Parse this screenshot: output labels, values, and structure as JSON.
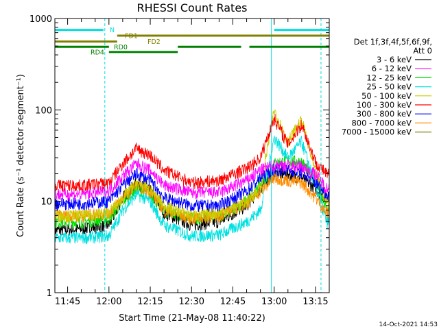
{
  "chart_data": {
    "type": "line",
    "title": "RHESSI Count Rates",
    "xlabel": "Start Time (21-May-08 11:40:22)",
    "ylabel": "Count Rate (s⁻¹ detector segment⁻¹)",
    "y_scale": "log",
    "ylim": [
      1,
      1000
    ],
    "xlim": [
      "11:40:22",
      "13:20:00"
    ],
    "y_ticks": [
      1,
      10,
      100,
      1000
    ],
    "y_tick_labels": [
      "1",
      "10",
      "100",
      "1000"
    ],
    "x_ticks": [
      "11:45",
      "12:00",
      "12:15",
      "12:30",
      "12:45",
      "13:00",
      "13:15"
    ],
    "timestamp": "14-Oct-2021 14:53",
    "legend": {
      "position": "right",
      "header": [
        "Det 1f,3f,4f,5f,6f,9f,",
        "Att 0"
      ]
    },
    "series": [
      {
        "name": "3 - 6 keV",
        "color": "#000000",
        "x": [
          "11:40",
          "11:50",
          "12:00",
          "12:05",
          "12:10",
          "12:15",
          "12:20",
          "12:30",
          "12:40",
          "12:50",
          "12:55",
          "13:00",
          "13:05",
          "13:10",
          "13:15",
          "13:19"
        ],
        "values": [
          4.8,
          5.0,
          5.5,
          11,
          16,
          13,
          7.5,
          5.5,
          6.0,
          9,
          14,
          20,
          20,
          18,
          14,
          10.5
        ]
      },
      {
        "name": "6 - 12 keV",
        "color": "#ff00ff",
        "x": [
          "11:40",
          "11:50",
          "12:00",
          "12:05",
          "12:10",
          "12:15",
          "12:20",
          "12:30",
          "12:40",
          "12:50",
          "12:55",
          "13:00",
          "13:05",
          "13:10",
          "13:15",
          "13:19"
        ],
        "values": [
          12,
          12,
          13,
          19,
          26,
          22,
          15,
          12.5,
          12.5,
          17,
          22,
          25,
          25,
          24,
          20,
          14
        ]
      },
      {
        "name": "12 - 25 keV",
        "color": "#00dd00",
        "x": [
          "11:40",
          "11:50",
          "12:00",
          "12:05",
          "12:10",
          "12:15",
          "12:20",
          "12:30",
          "12:40",
          "12:50",
          "12:55",
          "13:00",
          "13:05",
          "13:10",
          "13:15",
          "13:19"
        ],
        "values": [
          6.0,
          6.0,
          6.5,
          10,
          14,
          12,
          8,
          6.5,
          7,
          10,
          15,
          26,
          28,
          27,
          17,
          8
        ]
      },
      {
        "name": "25 - 50 keV",
        "color": "#00e0e0",
        "x": [
          "11:40",
          "11:50",
          "12:00",
          "12:05",
          "12:10",
          "12:15",
          "12:20",
          "12:30",
          "12:40",
          "12:50",
          "12:55",
          "13:00",
          "13:05",
          "13:10",
          "13:15",
          "13:19"
        ],
        "values": [
          4.0,
          4.0,
          4.2,
          8,
          12,
          10,
          5.5,
          4.2,
          4.3,
          6,
          8,
          50,
          30,
          45,
          15,
          6
        ]
      },
      {
        "name": "50 - 100 keV",
        "color": "#cccc00",
        "x": [
          "11:40",
          "11:50",
          "12:00",
          "12:05",
          "12:10",
          "12:15",
          "12:20",
          "12:30",
          "12:40",
          "12:50",
          "12:55",
          "13:00",
          "13:05",
          "13:10",
          "13:15",
          "13:19"
        ],
        "values": [
          7,
          7,
          7.5,
          11,
          16,
          14,
          9,
          7,
          7.5,
          10,
          14,
          100,
          45,
          78,
          20,
          10
        ]
      },
      {
        "name": "100 - 300 keV",
        "color": "#ff0000",
        "x": [
          "11:40",
          "11:50",
          "12:00",
          "12:05",
          "12:10",
          "12:15",
          "12:20",
          "12:30",
          "12:40",
          "12:50",
          "12:55",
          "13:00",
          "13:05",
          "13:10",
          "13:15",
          "13:19"
        ],
        "values": [
          15,
          15,
          16,
          26,
          38,
          32,
          22,
          16,
          17,
          23,
          30,
          82,
          42,
          70,
          27,
          20
        ]
      },
      {
        "name": "300 - 800 keV",
        "color": "#0000ff",
        "x": [
          "11:40",
          "11:50",
          "12:00",
          "12:05",
          "12:10",
          "12:15",
          "12:20",
          "12:30",
          "12:40",
          "12:50",
          "12:55",
          "13:00",
          "13:05",
          "13:10",
          "13:15",
          "13:19"
        ],
        "values": [
          9.5,
          9.5,
          10,
          15,
          20,
          17,
          11,
          9,
          9,
          13,
          18,
          23,
          22,
          21,
          16,
          12
        ]
      },
      {
        "name": "800 - 7000 keV",
        "color": "#ff8c00",
        "x": [
          "11:40",
          "11:50",
          "12:00",
          "12:05",
          "12:10",
          "12:15",
          "12:20",
          "12:30",
          "12:40",
          "12:50",
          "12:55",
          "13:00",
          "13:05",
          "13:10",
          "13:15",
          "13:19"
        ],
        "values": [
          7,
          7,
          7.5,
          11,
          15,
          13,
          8,
          6.5,
          7,
          9.5,
          13,
          18,
          17,
          16,
          11,
          7.5
        ]
      },
      {
        "name": "7000 - 15000 keV",
        "color": "#808000",
        "x": [],
        "values": []
      }
    ],
    "state_bars": [
      {
        "label": "N",
        "color": "#00e0e0",
        "y": 750,
        "segments": [
          [
            "11:40",
            "11:58"
          ],
          [
            "13:00",
            "13:20"
          ]
        ]
      },
      {
        "label": "FD1",
        "color": "#808000",
        "y": 650,
        "segments": [
          [
            "12:03",
            "13:20"
          ]
        ]
      },
      {
        "label": "FD2",
        "color": "#808000",
        "y": 560,
        "segments": [
          [
            "11:40",
            "12:03"
          ]
        ]
      },
      {
        "label": "RD0",
        "color": "#008000",
        "y": 490,
        "segments": [
          [
            "11:40",
            "12:00"
          ],
          [
            "12:25",
            "12:48"
          ],
          [
            "12:51",
            "13:20"
          ]
        ]
      },
      {
        "label": "RD4",
        "color": "#008000",
        "y": 430,
        "segments": [
          [
            "12:00",
            "12:25"
          ]
        ]
      }
    ],
    "vertical_markers": [
      {
        "x": "11:40:22",
        "style": "solid",
        "color": "#00e0e0"
      },
      {
        "x": "11:58:30",
        "style": "dashed",
        "color": "#00e0e0"
      },
      {
        "x": "12:59:00",
        "style": "solid",
        "color": "#00e0e0"
      },
      {
        "x": "13:17:00",
        "style": "dashed",
        "color": "#00e0e0"
      }
    ]
  }
}
